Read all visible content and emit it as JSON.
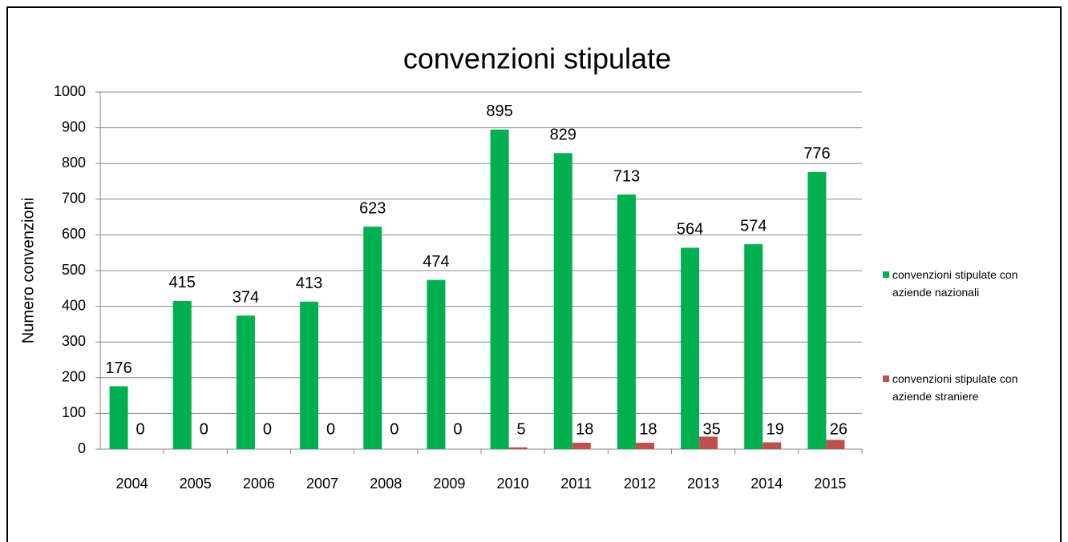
{
  "chart_data": {
    "type": "bar",
    "title": "convenzioni stipulate",
    "ylabel": "Numero convenzioni",
    "categories": [
      "2004",
      "2005",
      "2006",
      "2007",
      "2008",
      "2009",
      "2010",
      "2011",
      "2012",
      "2013",
      "2014",
      "2015"
    ],
    "series": [
      {
        "name": "convenzioni stipulate con aziende nazionali",
        "color": "#00b050",
        "values": [
          176,
          415,
          374,
          413,
          623,
          474,
          895,
          829,
          713,
          564,
          574,
          776
        ]
      },
      {
        "name": "convenzioni stipulate con aziende straniere",
        "color": "#c0504d",
        "values": [
          0,
          0,
          0,
          0,
          0,
          0,
          5,
          18,
          18,
          35,
          19,
          26
        ]
      }
    ],
    "ylim": [
      0,
      1000
    ],
    "yticks": [
      0,
      100,
      200,
      300,
      400,
      500,
      600,
      700,
      800,
      900,
      1000
    ],
    "grid": true,
    "legend": "right"
  }
}
